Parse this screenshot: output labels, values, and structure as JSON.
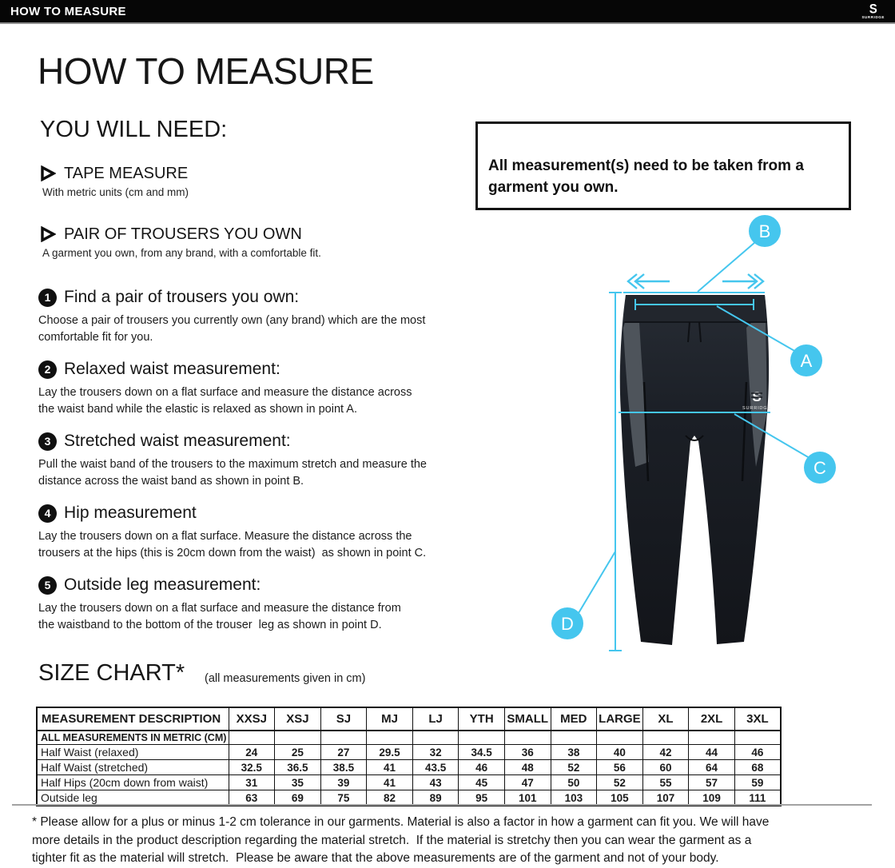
{
  "topbar": {
    "title": "HOW TO MEASURE",
    "brand_initial": "S",
    "brand": "SURRIDGE"
  },
  "page": {
    "title": "HOW TO MEASURE",
    "you_will_need_heading": "YOU WILL NEED:",
    "needs": [
      {
        "label": "TAPE MEASURE",
        "description": "With metric units (cm and mm)"
      },
      {
        "label": "PAIR OF TROUSERS YOU OWN",
        "description": "A garment you own, from any brand, with a comfortable fit."
      }
    ],
    "note": "All measurement(s) need to be taken from a\ngarment you own.",
    "steps": [
      {
        "number": "1",
        "heading": "Find a pair of trousers you own:",
        "body": "Choose a pair of trousers you currently own (any brand) which are the most\ncomfortable fit for you."
      },
      {
        "number": "2",
        "heading": "Relaxed waist measurement:",
        "body": "Lay the trousers down on a flat surface and measure the distance across\nthe waist band while the elastic is relaxed as shown in point A."
      },
      {
        "number": "3",
        "heading": "Stretched waist measurement:",
        "body": "Pull the waist band of the trousers to the maximum stretch and measure the\ndistance across the waist band as shown in point B."
      },
      {
        "number": "4",
        "heading": "Hip measurement",
        "body": "Lay the trousers down on a flat surface. Measure the distance across the\ntrousers at the hips (this is 20cm down from the waist)  as shown in point C."
      },
      {
        "number": "5",
        "heading": "Outside leg measurement:",
        "body": "Lay the trousers down on a flat surface and measure the distance from\nthe waistband to the bottom of the trouser  leg as shown in point D."
      }
    ]
  },
  "diagram": {
    "garment": "track-trousers",
    "logo_text": "SURRIDGE",
    "logo_initial": "S",
    "points": [
      {
        "label": "A"
      },
      {
        "label": "B"
      },
      {
        "label": "C"
      },
      {
        "label": "D"
      }
    ]
  },
  "size_chart": {
    "heading": "SIZE CHART*",
    "subtitle": "(all measurements given in cm)",
    "columns": [
      "MEASUREMENT DESCRIPTION",
      "XXSJ",
      "XSJ",
      "SJ",
      "MJ",
      "LJ",
      "YTH",
      "SMALL",
      "MED",
      "LARGE",
      "XL",
      "2XL",
      "3XL"
    ],
    "note_row": "ALL MEASUREMENTS IN METRIC (CM)",
    "rows": [
      {
        "label": "Half Waist (relaxed)",
        "values": [
          "24",
          "25",
          "27",
          "29.5",
          "32",
          "34.5",
          "36",
          "38",
          "40",
          "42",
          "44",
          "46"
        ]
      },
      {
        "label": "Half Waist (stretched)",
        "values": [
          "32.5",
          "36.5",
          "38.5",
          "41",
          "43.5",
          "46",
          "48",
          "52",
          "56",
          "60",
          "64",
          "68"
        ]
      },
      {
        "label": "Half Hips (20cm down from waist)",
        "values": [
          "31",
          "35",
          "39",
          "41",
          "43",
          "45",
          "47",
          "50",
          "52",
          "55",
          "57",
          "59"
        ]
      },
      {
        "label": "Outside leg",
        "values": [
          "63",
          "69",
          "75",
          "82",
          "89",
          "95",
          "101",
          "103",
          "105",
          "107",
          "109",
          "111"
        ]
      }
    ]
  },
  "footer": {
    "lines": [
      "* Please allow for a plus or minus 1-2 cm tolerance in our garments. Material is also a factor in how a garment can fit you. We will have",
      "more details in the product description regarding the material stretch.  If the material is stretchy then you can wear the garment as a",
      "tighter fit as the material will stretch.  Please be aware that the above measurements are of the garment and not of your body."
    ]
  },
  "colors": {
    "accent": "#45c6ee",
    "garment": "#1a1e24",
    "ink": "#141414"
  }
}
